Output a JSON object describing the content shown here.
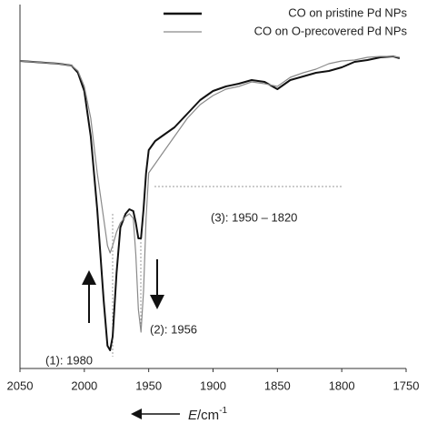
{
  "chart_data": {
    "type": "line",
    "xlabel": [
      "E",
      "/cm",
      "-1"
    ],
    "x": [
      2050,
      2040,
      2030,
      2020,
      2010,
      2005,
      2000,
      1995,
      1990,
      1985,
      1982,
      1980,
      1978,
      1975,
      1972,
      1968,
      1965,
      1962,
      1960,
      1958,
      1956,
      1954,
      1952,
      1950,
      1945,
      1940,
      1935,
      1930,
      1920,
      1910,
      1900,
      1890,
      1880,
      1870,
      1860,
      1850,
      1840,
      1830,
      1820,
      1810,
      1800,
      1790,
      1780,
      1770,
      1760,
      1755
    ],
    "series": [
      {
        "name": "CO on pristine Pd NPs",
        "color": "#111111",
        "values": [
          338,
          337,
          336,
          335,
          333,
          325,
          305,
          255,
          175,
          75,
          25,
          20,
          35,
          105,
          155,
          170,
          175,
          173,
          160,
          143,
          143,
          175,
          215,
          240,
          250,
          255,
          260,
          265,
          280,
          295,
          305,
          310,
          313,
          317,
          315,
          307,
          317,
          321,
          325,
          327,
          331,
          337,
          339,
          342,
          343,
          341
        ]
      },
      {
        "name": "CO on O-precovered Pd NPs",
        "color": "#8a8a8a",
        "values": [
          338,
          337,
          336,
          335,
          333,
          327,
          310,
          275,
          215,
          165,
          135,
          127,
          135,
          150,
          160,
          167,
          170,
          165,
          125,
          65,
          40,
          85,
          165,
          215,
          225,
          235,
          245,
          255,
          275,
          290,
          300,
          307,
          310,
          315,
          313,
          310,
          320,
          325,
          329,
          335,
          338,
          339,
          342,
          343,
          343,
          342
        ]
      }
    ],
    "xlim": [
      2050,
      1750
    ],
    "xticks": [
      2050,
      2000,
      1950,
      1900,
      1850,
      1800,
      1750
    ],
    "ylim": [
      0,
      400
    ],
    "legend": "upper right",
    "annotations": [
      "(1): 1980",
      "(2): 1956",
      "(3): 1950 – 1820"
    ]
  }
}
